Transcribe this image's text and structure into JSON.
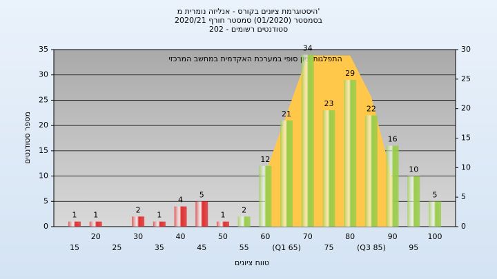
{
  "chart_data": {
    "type": "bar",
    "title": [
      "היסטוגרמת ציונים בקורס - אנליזה נומרית מ'",
      "בסמסטר (01/2020) סמסטר חורף 2020/21",
      "סטודנטים רשומים - 202"
    ],
    "annotation": "התפלגות ציון סופי במערכת האקדמית במחשב המרכזי",
    "x_label": "טווח ציונים",
    "y_label": "מספר סטודנטים",
    "categories": [
      "15",
      "20",
      "25",
      "30",
      "35",
      "40",
      "45",
      "50",
      "55",
      "60",
      "(Q1 65)",
      "70",
      "75",
      "80",
      "(Q3 85)",
      "90",
      "95",
      "100"
    ],
    "series": [
      {
        "type": "bar",
        "colors": [
          "#e03030",
          "#e03030",
          "#e03030",
          "#e03030",
          "#e03030",
          "#e03030",
          "#e03030",
          "#e03030",
          "#9acd4a",
          "#9acd4a",
          "#9acd4a",
          "#9acd4a",
          "#9acd4a",
          "#9acd4a",
          "#9acd4a",
          "#9acd4a",
          "#9acd4a",
          "#9acd4a"
        ],
        "values": [
          1,
          1,
          null,
          2,
          1,
          4,
          5,
          1,
          2,
          12,
          21,
          34,
          23,
          29,
          22,
          16,
          10,
          5
        ]
      },
      {
        "type": "area",
        "axis": "y2",
        "color": "#ffc84a",
        "values": [
          null,
          null,
          null,
          null,
          null,
          null,
          null,
          null,
          null,
          9,
          19,
          29,
          29,
          29,
          22,
          8,
          null,
          null
        ]
      }
    ],
    "ylim": [
      0,
      35
    ],
    "yticks": [
      0,
      5,
      10,
      15,
      20,
      25,
      30,
      35
    ],
    "y2lim": [
      0,
      30
    ],
    "y2ticks": [
      0,
      5,
      10,
      15,
      20,
      25,
      30
    ],
    "grid": true
  }
}
